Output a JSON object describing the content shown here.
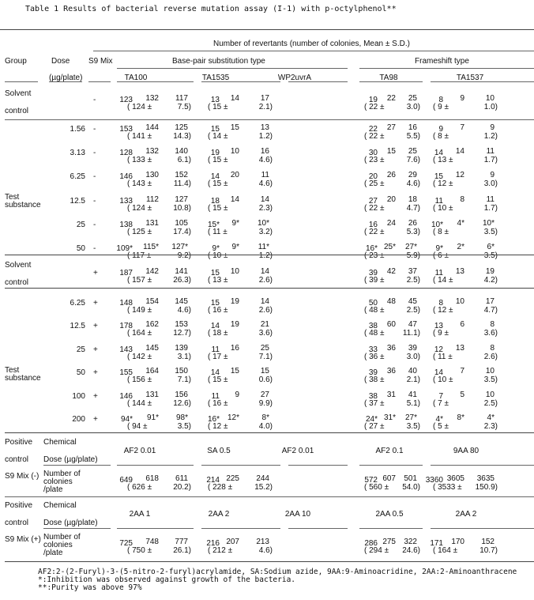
{
  "title": "Table 1    Results of bacterial reverse mutation  assay (I-1) with p-octylphenol**",
  "header": {
    "group": "Group",
    "dose": "Dose",
    "dose_unit": "(µg/plate)",
    "s9mix": "S9 Mix",
    "revertants": "Number of revertants (number of colonies, Mean ± S.D.)",
    "basepair": "Base-pair substitution type",
    "frameshift": "Frameshift type",
    "strains": [
      "TA100",
      "TA1535",
      "WP2uvrA",
      "TA98",
      "TA1537"
    ]
  },
  "labels": {
    "solvent": "Solvent",
    "control": "control",
    "test": "Test",
    "substance": "substance",
    "positive": "Positive",
    "chemical": "Chemical",
    "dose_plate": "Dose (µg/plate)",
    "s9_minus": "S9 Mix (-)",
    "s9_plus": "S9 Mix (+)",
    "number_of": "Number of",
    "colonies": "colonies",
    "per_plate": "/plate"
  },
  "solvent_minus": {
    "s9": "-",
    "ta100": [
      "123",
      "132",
      "117",
      "124",
      "7.5"
    ],
    "ta1535": [
      "13",
      "14",
      "17",
      "15",
      "2.1"
    ],
    "ta98": [
      "19",
      "22",
      "25",
      "22",
      "3.0"
    ],
    "ta1537": [
      "8",
      "9",
      "10",
      "9",
      "1.0"
    ]
  },
  "test_minus": [
    {
      "dose": "1.56",
      "s9": "-",
      "ta100": [
        "153",
        "144",
        "125",
        "141",
        "14.3"
      ],
      "ta1535": [
        "15",
        "15",
        "13",
        "14",
        "1.2"
      ],
      "ta98": [
        "22",
        "27",
        "16",
        "22",
        "5.5"
      ],
      "ta1537": [
        "9",
        "7",
        "9",
        "8",
        "1.2"
      ]
    },
    {
      "dose": "3.13",
      "s9": "-",
      "ta100": [
        "128",
        "132",
        "140",
        "133",
        "6.1"
      ],
      "ta1535": [
        "19",
        "10",
        "16",
        "15",
        "4.6"
      ],
      "ta98": [
        "30",
        "15",
        "25",
        "23",
        "7.6"
      ],
      "ta1537": [
        "14",
        "14",
        "11",
        "13",
        "1.7"
      ]
    },
    {
      "dose": "6.25",
      "s9": "-",
      "ta100": [
        "146",
        "130",
        "152",
        "143",
        "11.4"
      ],
      "ta1535": [
        "14",
        "20",
        "11",
        "15",
        "4.6"
      ],
      "ta98": [
        "20",
        "26",
        "29",
        "25",
        "4.6"
      ],
      "ta1537": [
        "15",
        "12",
        "9",
        "12",
        "3.0"
      ]
    },
    {
      "dose": "12.5",
      "s9": "-",
      "ta100": [
        "133",
        "112",
        "127",
        "124",
        "10.8"
      ],
      "ta1535": [
        "18",
        "14",
        "14",
        "15",
        "2.3"
      ],
      "ta98": [
        "27",
        "20",
        "18",
        "22",
        "4.7"
      ],
      "ta1537": [
        "11",
        "8",
        "11",
        "10",
        "1.7"
      ]
    },
    {
      "dose": "25",
      "s9": "-",
      "ta100": [
        "138",
        "131",
        "105",
        "125",
        "17.4"
      ],
      "ta1535": [
        "15*",
        "9*",
        "10*",
        "11",
        "3.2"
      ],
      "ta98": [
        "16",
        "24",
        "26",
        "22",
        "5.3"
      ],
      "ta1537": [
        "10*",
        "4*",
        "10*",
        "8",
        "3.5"
      ]
    },
    {
      "dose": "50",
      "s9": "-",
      "ta100": [
        "109*",
        "115*",
        "127*",
        "117",
        "9.2"
      ],
      "ta1535": [
        "9*",
        "9*",
        "11*",
        "10",
        "1.2"
      ],
      "ta98": [
        "16*",
        "25*",
        "27*",
        "23",
        "5.9"
      ],
      "ta1537": [
        "9*",
        "2*",
        "6*",
        "6",
        "3.5"
      ]
    }
  ],
  "solvent_plus": {
    "s9": "+",
    "ta100": [
      "187",
      "142",
      "141",
      "157",
      "26.3"
    ],
    "ta1535": [
      "15",
      "10",
      "14",
      "13",
      "2.6"
    ],
    "ta98": [
      "39",
      "42",
      "37",
      "39",
      "2.5"
    ],
    "ta1537": [
      "11",
      "13",
      "19",
      "14",
      "4.2"
    ]
  },
  "test_plus": [
    {
      "dose": "6.25",
      "s9": "+",
      "ta100": [
        "148",
        "154",
        "145",
        "149",
        "4.6"
      ],
      "ta1535": [
        "15",
        "19",
        "14",
        "16",
        "2.6"
      ],
      "ta98": [
        "50",
        "48",
        "45",
        "48",
        "2.5"
      ],
      "ta1537": [
        "8",
        "10",
        "17",
        "12",
        "4.7"
      ]
    },
    {
      "dose": "12.5",
      "s9": "+",
      "ta100": [
        "178",
        "162",
        "153",
        "164",
        "12.7"
      ],
      "ta1535": [
        "14",
        "19",
        "21",
        "18",
        "3.6"
      ],
      "ta98": [
        "38",
        "60",
        "47",
        "48",
        "11.1"
      ],
      "ta1537": [
        "13",
        "6",
        "8",
        "9",
        "3.6"
      ]
    },
    {
      "dose": "25",
      "s9": "+",
      "ta100": [
        "143",
        "145",
        "139",
        "142",
        "3.1"
      ],
      "ta1535": [
        "11",
        "16",
        "25",
        "17",
        "7.1"
      ],
      "ta98": [
        "33",
        "36",
        "39",
        "36",
        "3.0"
      ],
      "ta1537": [
        "12",
        "13",
        "8",
        "11",
        "2.6"
      ]
    },
    {
      "dose": "50",
      "s9": "+",
      "ta100": [
        "155",
        "164",
        "150",
        "156",
        "7.1"
      ],
      "ta1535": [
        "14",
        "15",
        "15",
        "15",
        "0.6"
      ],
      "ta98": [
        "39",
        "36",
        "40",
        "38",
        "2.1"
      ],
      "ta1537": [
        "14",
        "7",
        "10",
        "10",
        "3.5"
      ]
    },
    {
      "dose": "100",
      "s9": "+",
      "ta100": [
        "146",
        "131",
        "156",
        "144",
        "12.6"
      ],
      "ta1535": [
        "11",
        "9",
        "27",
        "16",
        "9.9"
      ],
      "ta98": [
        "38",
        "31",
        "41",
        "37",
        "5.1"
      ],
      "ta1537": [
        "7",
        "5",
        "10",
        "7",
        "2.5"
      ]
    },
    {
      "dose": "200",
      "s9": "+",
      "ta100": [
        "94*",
        "91*",
        "98*",
        "94",
        "3.5"
      ],
      "ta1535": [
        "16*",
        "12*",
        "8*",
        "12",
        "4.0"
      ],
      "ta98": [
        "24*",
        "31*",
        "27*",
        "27",
        "3.5"
      ],
      "ta1537": [
        "4*",
        "8*",
        "4*",
        "5",
        "2.3"
      ]
    }
  ],
  "positive_minus": {
    "chemicals": [
      "AF2  0.01",
      "SA  0.5",
      "AF2  0.01",
      "AF2  0.1",
      "9AA 80"
    ],
    "ta100": [
      "649",
      "618",
      "611",
      "626",
      "20.2"
    ],
    "ta1535": [
      "214",
      "225",
      "244",
      "228",
      "15.2"
    ],
    "ta98": [
      "572",
      "607",
      "501",
      "560",
      "54.0"
    ],
    "ta1537": [
      "3360",
      "3605",
      "3635",
      "3533",
      "150.9"
    ]
  },
  "positive_plus": {
    "chemicals": [
      "2AA  1",
      "2AA  2",
      "2AA  10",
      "2AA  0.5",
      "2AA  2"
    ],
    "ta100": [
      "725",
      "748",
      "777",
      "750",
      "26.1"
    ],
    "ta1535": [
      "216",
      "207",
      "213",
      "212",
      "4.6"
    ],
    "ta98": [
      "286",
      "275",
      "322",
      "294",
      "24.6"
    ],
    "ta1537": [
      "171",
      "170",
      "152",
      "164",
      "10.7"
    ]
  },
  "footnotes": [
    "AF2:2-(2-Furyl)-3-(5-nitro-2-furyl)acrylamide, SA:Sodium azide, 9AA:9-Aminoacridine, 2AA:2-Aminoanthracene",
    "*:Inhibition was observed against growth of the bacteria.",
    "**:Purity was above 97%"
  ]
}
